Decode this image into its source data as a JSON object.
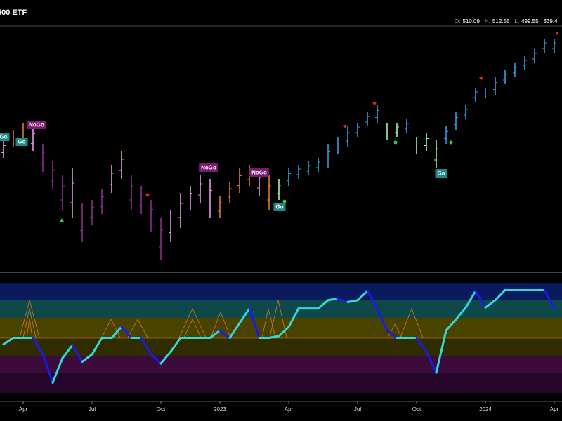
{
  "header": {
    "title": "500 ETF",
    "fields": [
      {
        "label": "O:",
        "value": 510.09
      },
      {
        "label": "H:",
        "value": 512.55
      },
      {
        "label": "L:",
        "value": 499.55
      },
      {
        "value": 339.4
      }
    ]
  },
  "chart_data": [
    {
      "type": "range_bar",
      "high": [
        450,
        457.5,
        462.5,
        460,
        447.5,
        435,
        425,
        430,
        405,
        407.5,
        415,
        432.5,
        442.5,
        425,
        417.5,
        407.5,
        395,
        400,
        412.5,
        417.5,
        425,
        422.5,
        410,
        420,
        430,
        432.5,
        430,
        425,
        422.5,
        430,
        432.5,
        435,
        437.5,
        447.5,
        452.5,
        460,
        462.5,
        470,
        475,
        462.5,
        462.5,
        465,
        452.5,
        455,
        450,
        460,
        470,
        475,
        487.5,
        487.5,
        495,
        500,
        505,
        510,
        515,
        522.5,
        522.5
      ],
      "low": [
        437.5,
        445,
        450,
        442.5,
        427.5,
        415,
        400,
        395,
        377.5,
        390,
        397.5,
        412.5,
        422.5,
        400,
        397.5,
        385,
        365,
        377.5,
        387.5,
        400,
        405,
        395,
        395,
        405,
        412.5,
        417.5,
        410,
        400,
        407.5,
        417.5,
        422.5,
        425,
        427.5,
        430,
        440,
        445,
        452.5,
        460,
        462.5,
        450,
        452.5,
        455,
        440,
        442.5,
        430,
        447.5,
        457.5,
        465,
        477.5,
        480,
        482.5,
        490,
        495,
        500,
        505,
        512.5,
        512.5
      ],
      "colors": [
        "#e49be4",
        "#e0782c",
        "#e0782c",
        "#e49be4",
        "#8b2f8b",
        "#8b2f8b",
        "#8b2f8b",
        "#e49be4",
        "#8b2f8b",
        "#8b2f8b",
        "#8b2f8b",
        "#e49be4",
        "#e49be4",
        "#8b2f8b",
        "#8b2f8b",
        "#8b2f8b",
        "#8b2f8b",
        "#e49be4",
        "#e49be4",
        "#e49be4",
        "#e49be4",
        "#e49be4",
        "#e0782c",
        "#e0782c",
        "#e0782c",
        "#e0782c",
        "#e49be4",
        "#e0782c",
        "#a8f0b0",
        "#3a9ad9",
        "#3a9ad9",
        "#3a9ad9",
        "#3a9ad9",
        "#3a9ad9",
        "#3a9ad9",
        "#3a9ad9",
        "#3a9ad9",
        "#3a9ad9",
        "#3a9ad9",
        "#a8f0b0",
        "#a8f0b0",
        "#3a9ad9",
        "#a8f0b0",
        "#a8f0b0",
        "#a8f0b0",
        "#3a9ad9",
        "#3a9ad9",
        "#3a9ad9",
        "#3a9ad9",
        "#3a9ad9",
        "#3a9ad9",
        "#3a9ad9",
        "#3a9ad9",
        "#3a9ad9",
        "#3a9ad9",
        "#3a9ad9",
        "#3a9ad9"
      ],
      "ylim": [
        350,
        530
      ],
      "annotations": [
        "Go",
        "NoGo",
        "Go",
        "NoGo",
        "NoGo",
        "Go",
        "Go"
      ]
    },
    {
      "type": "line",
      "categories": [
        null,
        null,
        "Apr",
        null,
        null,
        null,
        null,
        null,
        null,
        "Jul",
        null,
        null,
        null,
        null,
        null,
        null,
        "Oct",
        null,
        null,
        null,
        null,
        null,
        "2023",
        null,
        null,
        null,
        null,
        null,
        null,
        "Apr",
        null,
        null,
        null,
        null,
        null,
        null,
        "Jul",
        null,
        null,
        null,
        null,
        null,
        "Oct",
        null,
        null,
        null,
        null,
        null,
        null,
        "2024",
        null,
        null,
        null,
        null,
        null,
        null,
        "Apr"
      ],
      "values": [
        -0.7,
        0,
        0,
        0,
        -1.8,
        -4.9,
        -2.2,
        -0.8,
        -2.6,
        -1.8,
        0,
        0,
        1.2,
        0,
        0,
        -1.8,
        -2.8,
        -1.5,
        0,
        0,
        0,
        0,
        0.8,
        0,
        1.6,
        3.2,
        0,
        0,
        0.2,
        1.2,
        3.2,
        3.2,
        3.2,
        4.1,
        4.3,
        3.9,
        4.1,
        5.1,
        3.2,
        0.8,
        0,
        0,
        0,
        -1.5,
        -3.8,
        0.8,
        2,
        3.3,
        5.1,
        3.3,
        4.1,
        5.2,
        5.2,
        5.2,
        5.2,
        5.2,
        3.2
      ],
      "ylim": [
        -6,
        6
      ],
      "rising_color": "#35d8d8",
      "falling_color": "#1a1ae6",
      "zero_color": "#e0822a"
    }
  ]
}
